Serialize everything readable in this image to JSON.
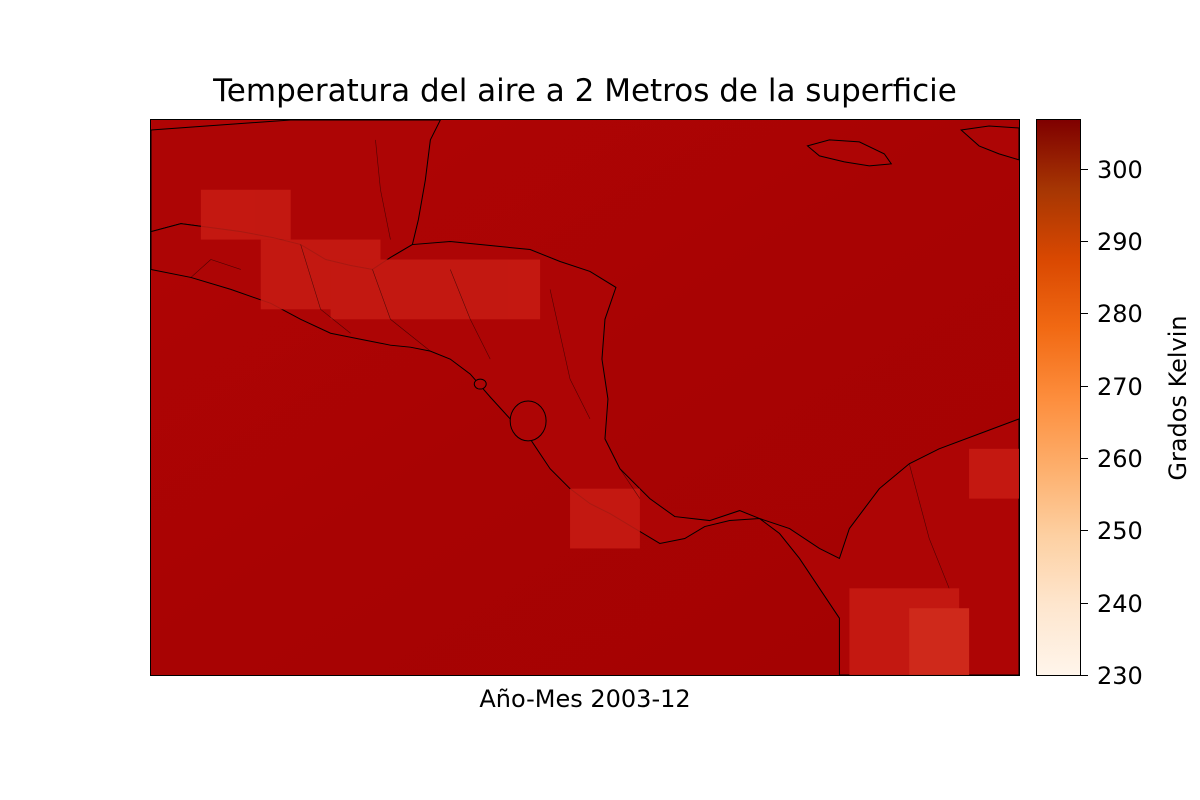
{
  "chart_data": {
    "type": "heatmap",
    "title": "Temperatura del aire a 2 Metros de la superficie",
    "xlabel": "Año-Mes 2003-12",
    "colorbar": {
      "label": "Grados Kelvin",
      "range": [
        230,
        307
      ],
      "ticks": [
        230,
        240,
        250,
        260,
        270,
        280,
        290,
        300
      ],
      "colormap": [
        "#fff5eb",
        "#fee6ce",
        "#fdd0a2",
        "#fdae6b",
        "#fd8d3c",
        "#f16913",
        "#d94801",
        "#a63603",
        "#7f0000"
      ]
    },
    "field_summary": {
      "ocean_value_approx": 300,
      "land_value_range_approx": [
        290,
        302
      ]
    }
  },
  "colors": {
    "ocean": "#a60303",
    "warm_land": "#b20505",
    "highland": "#cc2a1e",
    "coastline": "#000000"
  }
}
